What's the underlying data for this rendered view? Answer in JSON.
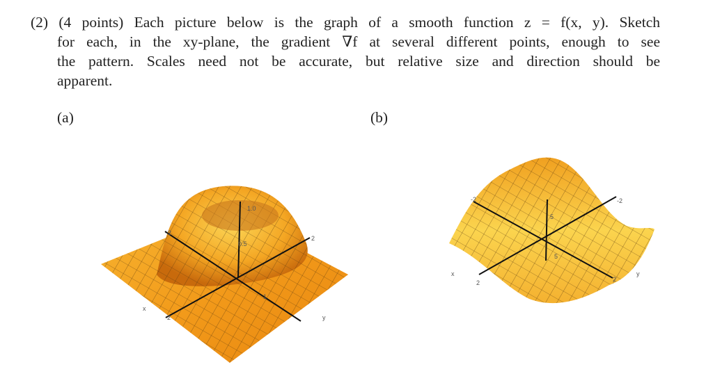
{
  "problem": {
    "lines": [
      "(2) (4 points) Each picture below is the graph of a smooth function z = f(x, y). Sketch",
      "for each, in the xy-plane, the gradient ∇f at several different points, enough to see",
      "the pattern. Scales need not be accurate, but relative size and direction should be",
      "apparent."
    ]
  },
  "figures": [
    {
      "label": "(a)",
      "axis_labels": [
        "x",
        "y",
        "1.0",
        "0.5",
        "2",
        "2",
        "-2",
        "1"
      ]
    },
    {
      "label": "(b)",
      "axis_labels": [
        "x",
        "y",
        "-2",
        "-2",
        "2",
        "2",
        "5",
        "5"
      ]
    }
  ]
}
